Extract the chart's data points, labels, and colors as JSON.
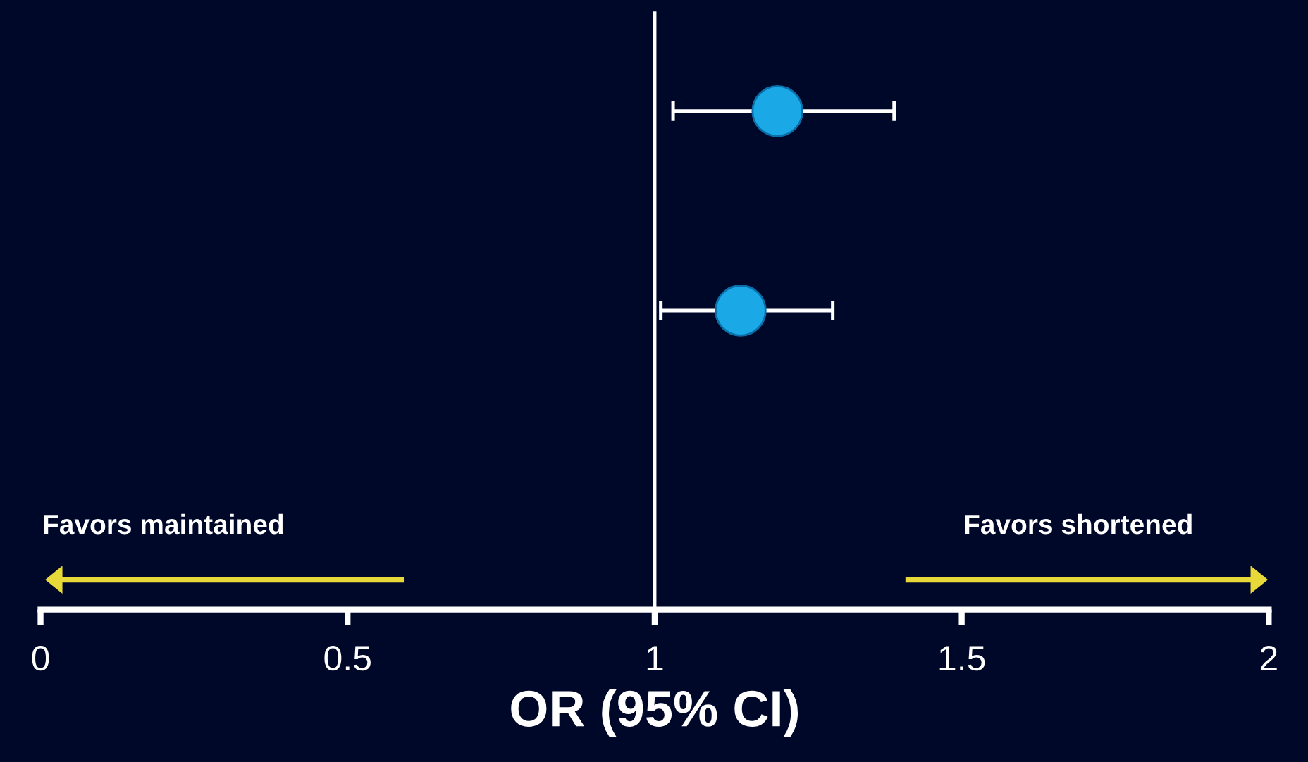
{
  "chart_data": {
    "type": "scatter",
    "orientation": "horizontal",
    "xlabel": "OR (95% CI)",
    "categories": [
      null,
      null,
      null
    ],
    "series": [
      {
        "color": "#1aa8e6",
        "values": [
          1.2,
          1.14,
          null
        ],
        "errors": [
          [
            1.03,
            1.39
          ],
          [
            1.01,
            1.29
          ],
          null
        ]
      }
    ],
    "marker": "circle",
    "xlim": [
      0,
      2
    ],
    "xticks": [
      0,
      0.5,
      1,
      1.5,
      2
    ],
    "ref_lines": [
      {
        "axis": "x",
        "value": 1,
        "color": "#ffffff"
      }
    ],
    "annotations": [
      "Favors maintained",
      "Favors shortened"
    ],
    "grid": false,
    "legend": false
  }
}
